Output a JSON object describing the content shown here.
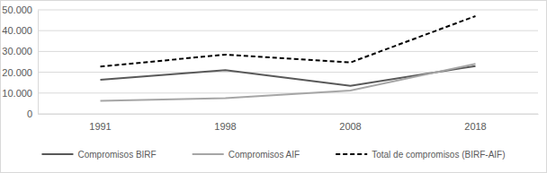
{
  "chart_data": {
    "type": "line",
    "categories": [
      "1991",
      "1998",
      "2008",
      "2018"
    ],
    "series": [
      {
        "name": "Compromisos BIRF",
        "color": "#595959",
        "line_style": "solid",
        "values": [
          16400,
          21000,
          13500,
          23000
        ]
      },
      {
        "name": "Compromisos AIF",
        "color": "#a6a6a6",
        "line_style": "solid",
        "values": [
          6300,
          7500,
          11200,
          24000
        ]
      },
      {
        "name": "Total de compromisos (BIRF-AIF)",
        "color": "#000000",
        "line_style": "dashed",
        "values": [
          22700,
          28500,
          24700,
          47000
        ]
      }
    ],
    "ylim": [
      0,
      50000
    ],
    "yticks": [
      0,
      {
        "value": 10000,
        "label": "10.000"
      },
      {
        "value": 20000,
        "label": "20.000"
      },
      {
        "value": 30000,
        "label": "30.000"
      },
      {
        "value": 40000,
        "label": "40.000"
      },
      {
        "value": 50000,
        "label": "50.000"
      }
    ],
    "grid": true,
    "legend": "bottom"
  }
}
